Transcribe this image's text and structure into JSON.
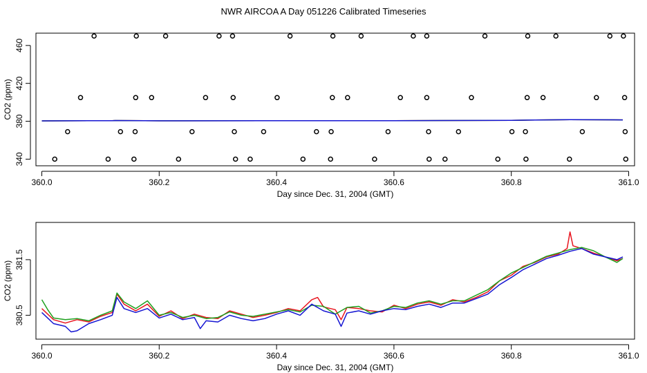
{
  "page_title": "NWR AIRCOA A  Day 051226  Calibrated Timeseries",
  "colors": {
    "red": "#e8141e",
    "green": "#1ea01e",
    "blue": "#1414d2",
    "axis": "#000000"
  },
  "chart_data": [
    {
      "type": "scatter",
      "title": "",
      "xlabel": "Day since Dec. 31, 2004 (GMT)",
      "ylabel": "CO2 (ppm)",
      "xlim": [
        359.99,
        361.01
      ],
      "ylim": [
        333,
        473
      ],
      "xticks": [
        360.0,
        360.2,
        360.4,
        360.6,
        360.8,
        361.0
      ],
      "xtick_labels": [
        "360.0",
        "360.2",
        "360.4",
        "360.6",
        "360.8",
        "361.0"
      ],
      "yticks": [
        340,
        380,
        420,
        460
      ],
      "ytick_labels": [
        "340",
        "380",
        "420",
        "460"
      ],
      "points": [
        [
          360.089,
          470
        ],
        [
          360.161,
          470
        ],
        [
          360.211,
          470
        ],
        [
          360.302,
          470
        ],
        [
          360.325,
          470
        ],
        [
          360.423,
          470
        ],
        [
          360.496,
          470
        ],
        [
          360.544,
          470
        ],
        [
          360.633,
          470
        ],
        [
          360.656,
          470
        ],
        [
          360.755,
          470
        ],
        [
          360.828,
          470
        ],
        [
          360.876,
          470
        ],
        [
          360.968,
          470
        ],
        [
          360.991,
          470
        ],
        [
          360.066,
          405
        ],
        [
          360.16,
          405
        ],
        [
          360.187,
          405
        ],
        [
          360.279,
          405
        ],
        [
          360.326,
          405
        ],
        [
          360.401,
          405
        ],
        [
          360.495,
          405
        ],
        [
          360.521,
          405
        ],
        [
          360.611,
          405
        ],
        [
          360.656,
          405
        ],
        [
          360.732,
          405
        ],
        [
          360.827,
          405
        ],
        [
          360.854,
          405
        ],
        [
          360.945,
          405
        ],
        [
          360.993,
          405
        ],
        [
          360.044,
          369
        ],
        [
          360.134,
          369
        ],
        [
          360.159,
          369
        ],
        [
          360.256,
          369
        ],
        [
          360.328,
          369
        ],
        [
          360.378,
          369
        ],
        [
          360.468,
          369
        ],
        [
          360.493,
          369
        ],
        [
          360.59,
          369
        ],
        [
          360.659,
          369
        ],
        [
          360.71,
          369
        ],
        [
          360.801,
          369
        ],
        [
          360.824,
          369
        ],
        [
          360.921,
          369
        ],
        [
          360.994,
          369
        ],
        [
          360.022,
          340
        ],
        [
          360.113,
          340
        ],
        [
          360.157,
          340
        ],
        [
          360.233,
          340
        ],
        [
          360.33,
          340
        ],
        [
          360.355,
          340
        ],
        [
          360.445,
          340
        ],
        [
          360.492,
          340
        ],
        [
          360.567,
          340
        ],
        [
          360.66,
          340
        ],
        [
          360.687,
          340
        ],
        [
          360.777,
          340
        ],
        [
          360.825,
          340
        ],
        [
          360.899,
          340
        ],
        [
          360.995,
          340
        ]
      ],
      "series": [
        {
          "name": "red",
          "color": "#e8141e",
          "x": [
            360.0,
            360.12,
            360.125,
            360.2,
            360.4,
            360.6,
            360.8,
            360.9,
            360.99
          ],
          "values": [
            380.4,
            380.6,
            380.75,
            380.5,
            380.6,
            380.65,
            380.95,
            381.7,
            381.4
          ]
        },
        {
          "name": "green",
          "color": "#1ea01e",
          "x": [
            360.0,
            360.12,
            360.125,
            360.2,
            360.4,
            360.6,
            360.8,
            360.9,
            360.99
          ],
          "values": [
            380.4,
            380.6,
            380.75,
            380.5,
            380.6,
            380.65,
            380.95,
            381.7,
            381.4
          ]
        },
        {
          "name": "blue",
          "color": "#1414d2",
          "x": [
            360.0,
            360.12,
            360.125,
            360.2,
            360.4,
            360.6,
            360.8,
            360.9,
            360.99
          ],
          "values": [
            380.4,
            380.6,
            380.75,
            380.5,
            380.6,
            380.65,
            380.95,
            381.7,
            381.4
          ]
        }
      ]
    },
    {
      "type": "line",
      "title": "",
      "xlabel": "Day since Dec. 31, 2004 (GMT)",
      "ylabel": "CO2 (ppm)",
      "xlim": [
        359.99,
        361.01
      ],
      "ylim": [
        380.07,
        382.17
      ],
      "xticks": [
        360.0,
        360.2,
        360.4,
        360.6,
        360.8,
        361.0
      ],
      "xtick_labels": [
        "360.0",
        "360.2",
        "360.4",
        "360.6",
        "360.8",
        "361.0"
      ],
      "yticks": [
        380.5,
        381.5
      ],
      "ytick_labels": [
        "380.5",
        "381.5"
      ],
      "series": [
        {
          "name": "red",
          "color": "#e8141e",
          "x": [
            360.0,
            360.01,
            360.02,
            360.04,
            360.06,
            360.08,
            360.1,
            360.12,
            360.128,
            360.14,
            360.16,
            360.18,
            360.2,
            360.22,
            360.24,
            360.26,
            360.28,
            360.3,
            360.32,
            360.34,
            360.36,
            360.38,
            360.4,
            360.42,
            360.44,
            360.46,
            360.47,
            360.48,
            360.5,
            360.51,
            360.52,
            360.54,
            360.56,
            360.58,
            360.6,
            360.62,
            360.64,
            360.66,
            360.68,
            360.7,
            360.72,
            360.74,
            360.76,
            360.78,
            360.8,
            360.82,
            360.84,
            360.86,
            360.88,
            360.895,
            360.9,
            360.905,
            360.92,
            360.94,
            360.96,
            360.98,
            360.99
          ],
          "values": [
            380.62,
            380.52,
            380.42,
            380.36,
            380.42,
            380.38,
            380.48,
            380.55,
            380.88,
            380.7,
            380.58,
            380.7,
            380.48,
            380.58,
            380.44,
            380.52,
            380.46,
            380.44,
            380.58,
            380.52,
            380.46,
            380.5,
            380.55,
            380.62,
            380.58,
            380.78,
            380.82,
            380.65,
            380.6,
            380.42,
            380.64,
            380.62,
            380.58,
            380.56,
            380.68,
            380.62,
            380.7,
            380.74,
            380.68,
            380.78,
            380.74,
            380.82,
            380.92,
            381.12,
            381.22,
            381.38,
            381.45,
            381.55,
            381.6,
            381.7,
            382.0,
            381.75,
            381.7,
            381.62,
            381.55,
            381.48,
            381.52
          ]
        },
        {
          "name": "green",
          "color": "#1ea01e",
          "x": [
            360.0,
            360.01,
            360.02,
            360.04,
            360.06,
            360.08,
            360.1,
            360.12,
            360.128,
            360.14,
            360.16,
            360.18,
            360.2,
            360.22,
            360.24,
            360.26,
            360.28,
            360.3,
            360.32,
            360.34,
            360.36,
            360.38,
            360.4,
            360.42,
            360.44,
            360.46,
            360.48,
            360.5,
            360.52,
            360.54,
            360.56,
            360.58,
            360.6,
            360.62,
            360.64,
            360.66,
            360.68,
            360.7,
            360.72,
            360.74,
            360.76,
            360.78,
            360.8,
            360.82,
            360.84,
            360.86,
            360.88,
            360.9,
            360.92,
            360.94,
            360.96,
            360.98,
            360.99
          ],
          "values": [
            380.78,
            380.6,
            380.45,
            380.42,
            380.44,
            380.4,
            380.5,
            380.58,
            380.9,
            380.74,
            380.62,
            380.76,
            380.5,
            380.55,
            380.46,
            380.5,
            380.44,
            380.46,
            380.56,
            380.5,
            380.48,
            380.52,
            380.56,
            380.6,
            380.56,
            380.68,
            380.66,
            380.52,
            380.64,
            380.66,
            380.54,
            380.58,
            380.66,
            380.64,
            380.72,
            380.76,
            380.7,
            380.76,
            380.76,
            380.86,
            380.96,
            381.12,
            381.26,
            381.36,
            381.46,
            381.56,
            381.62,
            381.68,
            381.72,
            381.66,
            381.55,
            381.45,
            381.52
          ]
        },
        {
          "name": "blue",
          "color": "#1414d2",
          "x": [
            360.0,
            360.01,
            360.02,
            360.04,
            360.05,
            360.06,
            360.08,
            360.1,
            360.12,
            360.128,
            360.14,
            360.16,
            360.18,
            360.2,
            360.22,
            360.24,
            360.26,
            360.27,
            360.28,
            360.3,
            360.32,
            360.34,
            360.36,
            360.38,
            360.4,
            360.42,
            360.44,
            360.46,
            360.48,
            360.5,
            360.51,
            360.52,
            360.54,
            360.56,
            360.58,
            360.6,
            360.62,
            360.64,
            360.66,
            360.68,
            360.7,
            360.72,
            360.74,
            360.76,
            360.78,
            360.8,
            360.82,
            360.84,
            360.86,
            360.88,
            360.9,
            360.92,
            360.94,
            360.96,
            360.98,
            360.99
          ],
          "values": [
            380.55,
            380.45,
            380.35,
            380.3,
            380.2,
            380.22,
            380.35,
            380.42,
            380.5,
            380.82,
            380.62,
            380.55,
            380.62,
            380.45,
            380.52,
            380.42,
            380.46,
            380.26,
            380.4,
            380.38,
            380.5,
            380.44,
            380.4,
            380.44,
            380.52,
            380.58,
            380.5,
            380.7,
            380.58,
            380.52,
            380.3,
            380.54,
            380.58,
            380.52,
            380.58,
            380.62,
            380.6,
            380.66,
            380.7,
            380.64,
            380.72,
            380.72,
            380.8,
            380.88,
            381.05,
            381.18,
            381.32,
            381.42,
            381.52,
            381.58,
            381.65,
            381.7,
            381.6,
            381.55,
            381.5,
            381.55
          ]
        }
      ]
    }
  ]
}
